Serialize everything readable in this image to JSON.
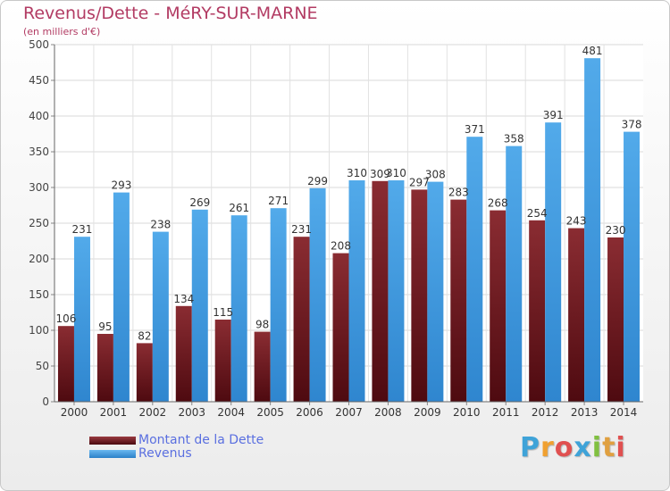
{
  "chart_data": {
    "type": "bar",
    "title": "Revenus/Dette - MéRY-SUR-MARNE",
    "subtitle": "(en milliers d'€)",
    "categories": [
      "2000",
      "2001",
      "2002",
      "2003",
      "2004",
      "2005",
      "2006",
      "2007",
      "2008",
      "2009",
      "2010",
      "2011",
      "2012",
      "2013",
      "2014"
    ],
    "series": [
      {
        "name": "Montant de la Dette",
        "color": "#7a1f25",
        "values": [
          106,
          95,
          82,
          134,
          115,
          98,
          231,
          208,
          309,
          297,
          283,
          268,
          254,
          243,
          230
        ]
      },
      {
        "name": "Revenus",
        "color": "#4a9fe0",
        "values": [
          231,
          293,
          238,
          269,
          261,
          271,
          299,
          310,
          310,
          308,
          371,
          358,
          391,
          481,
          378
        ]
      }
    ],
    "yticks": [
      "0",
      "50",
      "100",
      "150",
      "200",
      "250",
      "300",
      "350",
      "400",
      "450",
      "500"
    ],
    "ylim": [
      0,
      500
    ],
    "grid": true,
    "legend_position": "bottom-left"
  },
  "logo": {
    "letters": [
      "P",
      "r",
      "o",
      "x",
      "i",
      "t",
      "i"
    ],
    "colors": [
      "#3fa3d8",
      "#f0a030",
      "#e05050",
      "#3fa3d8",
      "#80c040",
      "#e0a040",
      "#e05050"
    ]
  }
}
